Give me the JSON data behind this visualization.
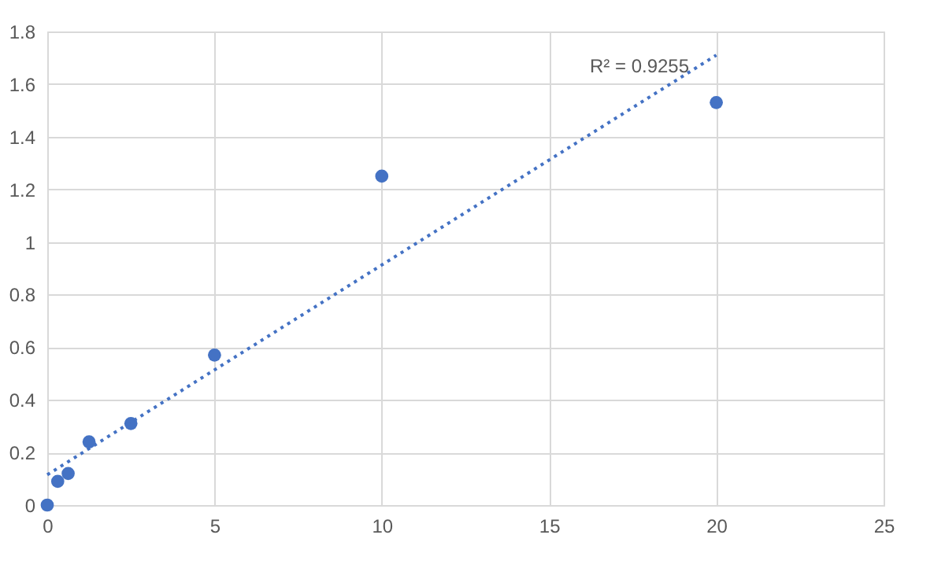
{
  "chart_data": {
    "type": "scatter",
    "xlim": [
      0,
      25
    ],
    "xticks": [
      0,
      5,
      10,
      15,
      20,
      25
    ],
    "ylim": [
      0,
      1.8
    ],
    "yticks": [
      0,
      0.2,
      0.4,
      0.6,
      0.8,
      1,
      1.2,
      1.4,
      1.6,
      1.8
    ],
    "grid": true,
    "series": [
      {
        "marker": "circle",
        "color": "#4472c4",
        "x": [
          0,
          0.3125,
          0.625,
          1.25,
          2.5,
          5,
          10,
          20
        ],
        "values": [
          0,
          0.09,
          0.12,
          0.24,
          0.31,
          0.57,
          1.25,
          1.53
        ]
      },
      {
        "type": "line",
        "line_style": "dotted",
        "color": "#4472c4",
        "x": [
          0,
          20
        ],
        "values": [
          0.115,
          1.71
        ]
      }
    ],
    "annotations": [
      "R² = 0.9255"
    ]
  }
}
